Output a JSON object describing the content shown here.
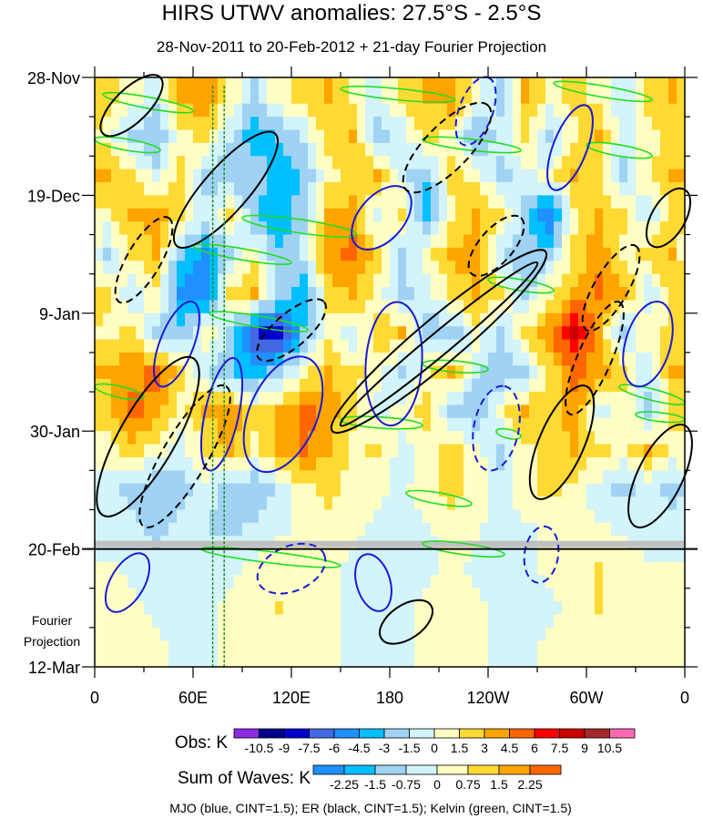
{
  "chart_data": {
    "type": "heatmap",
    "title": "HIRS UTWV anomalies: 27.5°S - 2.5°S",
    "subtitle": "28-Nov-2011 to 20-Feb-2012 + 21-day Fourier Projection",
    "xlim": [
      0,
      360
    ],
    "ylim_days": [
      0,
      105
    ],
    "x_ticks": [
      {
        "lon": 0,
        "label": "0"
      },
      {
        "lon": 60,
        "label": "60E"
      },
      {
        "lon": 120,
        "label": "120E"
      },
      {
        "lon": 180,
        "label": "180"
      },
      {
        "lon": 240,
        "label": "120W"
      },
      {
        "lon": 300,
        "label": "60W"
      },
      {
        "lon": 360,
        "label": "0"
      }
    ],
    "y_ticks": [
      {
        "day": 0,
        "label": "28-Nov"
      },
      {
        "day": 21,
        "label": "19-Dec"
      },
      {
        "day": 42,
        "label": "9-Jan"
      },
      {
        "day": 63,
        "label": "30-Jan"
      },
      {
        "day": 84,
        "label": "20-Feb"
      },
      {
        "day": 105,
        "label": "12-Mar"
      }
    ],
    "projection_label": [
      "Fourier",
      "Projection"
    ],
    "projection_start_day": 84,
    "grid_lon_step": 15,
    "grid_day_step": 7,
    "values": [
      [
        2,
        1,
        -1,
        3,
        4,
        1,
        -2,
        1,
        2,
        3,
        1,
        -1,
        2,
        3,
        4,
        1,
        -2,
        3,
        1,
        2,
        1,
        -1,
        2,
        3
      ],
      [
        1,
        -2,
        -3,
        1,
        2,
        -1,
        -4,
        -3,
        -1,
        2,
        3,
        -2,
        -1,
        2,
        1,
        -3,
        -1,
        2,
        -2,
        1,
        3,
        -1,
        1,
        2
      ],
      [
        3,
        2,
        -1,
        2,
        -2,
        -3,
        -2,
        -4,
        -3,
        1,
        2,
        3,
        -1,
        -3,
        2,
        1,
        -2,
        -1,
        1,
        3,
        2,
        -2,
        1,
        3
      ],
      [
        1,
        3,
        4,
        2,
        -1,
        2,
        -3,
        -4,
        -2,
        3,
        4,
        -1,
        2,
        -4,
        1,
        3,
        2,
        -2,
        -6,
        1,
        3,
        2,
        -1,
        2
      ],
      [
        -2,
        2,
        3,
        -3,
        -5,
        -2,
        1,
        -3,
        -1,
        4,
        5,
        2,
        -2,
        1,
        3,
        4,
        -1,
        -3,
        -2,
        2,
        4,
        1,
        2,
        3
      ],
      [
        2,
        -1,
        1,
        -5,
        -6,
        2,
        3,
        -2,
        -4,
        2,
        3,
        1,
        -2,
        -1,
        2,
        3,
        2,
        -2,
        1,
        3,
        5,
        3,
        -1,
        2
      ],
      [
        1,
        2,
        -2,
        -3,
        1,
        -2,
        -7,
        -9,
        -3,
        1,
        -1,
        2,
        3,
        -2,
        -3,
        1,
        -2,
        2,
        4,
        8,
        3,
        -2,
        1,
        2
      ],
      [
        3,
        4,
        5,
        2,
        -1,
        -3,
        -4,
        -2,
        1,
        3,
        2,
        1,
        -2,
        1,
        3,
        -1,
        -3,
        -2,
        2,
        5,
        4,
        2,
        -1,
        3
      ],
      [
        2,
        5,
        4,
        1,
        3,
        4,
        2,
        3,
        5,
        4,
        2,
        -1,
        1,
        2,
        -2,
        -3,
        1,
        3,
        2,
        4,
        -1,
        1,
        -2,
        2
      ],
      [
        1,
        2,
        1,
        -1,
        2,
        3,
        1,
        3,
        5,
        3,
        1,
        2,
        -1,
        1,
        2,
        1,
        -2,
        1,
        2,
        3,
        2,
        1,
        3,
        1
      ],
      [
        -1,
        -2,
        -3,
        -2,
        -1,
        -2,
        -3,
        -1,
        1,
        2,
        1,
        0.5,
        -0.5,
        1,
        2,
        1,
        -1,
        1,
        2,
        1,
        -1,
        -2,
        -1,
        -2
      ],
      [
        -1,
        -1,
        -2,
        -1,
        -1.5,
        -2,
        -1,
        -0.5,
        0.5,
        1,
        0.5,
        -0.5,
        -1,
        -0.5,
        1,
        0.5,
        -1,
        -0.5,
        0.5,
        1,
        0.5,
        -0.5,
        -1,
        -1
      ],
      [
        0.5,
        -0.5,
        -1,
        -1,
        -1,
        -0.5,
        0.5,
        1,
        0.5,
        0.5,
        -0.5,
        -1,
        -1,
        -0.5,
        0.5,
        -0.5,
        -1,
        -0.5,
        0.5,
        1,
        1.5,
        1,
        0.5,
        0.5
      ],
      [
        0.5,
        0.5,
        -0.5,
        -1,
        -0.5,
        0.5,
        1,
        1.5,
        1,
        0.5,
        -0.5,
        -1,
        -0.5,
        0.5,
        1,
        0.5,
        -0.5,
        -1,
        -0.5,
        1,
        1.5,
        1,
        0.5,
        0.5
      ],
      [
        0.5,
        0.5,
        0.5,
        -0.5,
        -0.5,
        0.5,
        1,
        1,
        0.5,
        0.5,
        -0.5,
        -0.5,
        -0.5,
        0.5,
        0.5,
        0.5,
        -0.5,
        -0.5,
        0.5,
        0.5,
        1,
        1,
        0.5,
        0.5
      ]
    ],
    "obs_colorbar": {
      "label": "Obs: K",
      "levels": [
        "-10.5",
        "-9",
        "-7.5",
        "-6",
        "-4.5",
        "-3",
        "-1.5",
        "0",
        "1.5",
        "3",
        "4.5",
        "6",
        "7.5",
        "9",
        "10.5"
      ],
      "colors": [
        "#8a2be2",
        "#00008b",
        "#0000cd",
        "#4169e1",
        "#1e90ff",
        "#00bfff",
        "#a0d2f4",
        "#d2f4fa",
        "#ffffc4",
        "#ffd934",
        "#ffa500",
        "#ff6600",
        "#ff0000",
        "#c80000",
        "#a52a2a",
        "#ff69b4"
      ]
    },
    "waves_colorbar": {
      "label": "Sum of Waves: K",
      "levels": [
        "-2.25",
        "-1.5",
        "-0.75",
        "0",
        "0.75",
        "1.5",
        "2.25"
      ],
      "colors": [
        "#1e90ff",
        "#00bfff",
        "#a0d2f4",
        "#d2f4fa",
        "#ffffc4",
        "#ffd934",
        "#ffa500",
        "#ff6600"
      ]
    },
    "footer": "MJO (blue, CINT=1.5); ER (black, CINT=1.5); Kelvin (green, CINT=1.5)",
    "series_colors": {
      "MJO": "#1a1ad6",
      "ER": "#000000",
      "Kelvin": "#22dd22"
    },
    "kelvin_reference_lons": [
      72,
      79
    ],
    "contours": {
      "ER": [
        [
          [
            145,
            63
          ],
          [
            275,
            31
          ],
          4,
          1
        ],
        [
          [
            150,
            62
          ],
          [
            270,
            33
          ],
          2,
          1
        ],
        [
          [
            5,
            78
          ],
          [
            60,
            50
          ],
          5,
          1
        ],
        [
          [
            30,
            80
          ],
          [
            80,
            55
          ],
          4,
          -1
        ],
        [
          [
            190,
            20
          ],
          [
            240,
            5
          ],
          4,
          -1
        ],
        [
          [
            50,
            30
          ],
          [
            110,
            10
          ],
          4,
          1
        ],
        [
          [
            330,
            80
          ],
          [
            360,
            62
          ],
          4,
          1
        ],
        [
          [
            175,
            100
          ],
          [
            205,
            94
          ],
          3,
          1
        ],
        [
          [
            270,
            75
          ],
          [
            300,
            55
          ],
          4,
          1
        ],
        [
          [
            290,
            60
          ],
          [
            320,
            40
          ],
          3,
          -1
        ],
        [
          [
            5,
            10
          ],
          [
            40,
            0
          ],
          3,
          1
        ],
        [
          [
            100,
            50
          ],
          [
            140,
            40
          ],
          3,
          -1
        ],
        [
          [
            230,
            35
          ],
          [
            260,
            25
          ],
          3,
          -1
        ],
        [
          [
            340,
            30
          ],
          [
            360,
            20
          ],
          3,
          1
        ],
        [
          [
            15,
            40
          ],
          [
            45,
            25
          ],
          3,
          -1
        ],
        [
          [
            300,
            45
          ],
          [
            330,
            30
          ],
          3,
          -1
        ]
      ],
      "MJO": [
        [
          [
            100,
            70
          ],
          [
            130,
            50
          ],
          6,
          1
        ],
        [
          [
            180,
            62
          ],
          [
            185,
            40
          ],
          5,
          1
        ],
        [
          [
            240,
            70
          ],
          [
            250,
            55
          ],
          4,
          -1
        ],
        [
          [
            280,
            20
          ],
          [
            300,
            5
          ],
          3,
          1
        ],
        [
          [
            40,
            55
          ],
          [
            60,
            40
          ],
          3,
          1
        ],
        [
          [
            160,
            30
          ],
          [
            190,
            20
          ],
          4,
          1
        ],
        [
          [
            330,
            55
          ],
          [
            345,
            40
          ],
          4,
          1
        ],
        [
          [
            10,
            95
          ],
          [
            30,
            85
          ],
          3,
          1
        ],
        [
          [
            100,
            90
          ],
          [
            140,
            85
          ],
          4,
          -1
        ],
        [
          [
            165,
            85
          ],
          [
            175,
            95
          ],
          3,
          1
        ],
        [
          [
            270,
            90
          ],
          [
            275,
            80
          ],
          3,
          -1
        ],
        [
          [
            70,
            70
          ],
          [
            85,
            50
          ],
          3,
          1
        ],
        [
          [
            225,
            12
          ],
          [
            240,
            0
          ],
          3,
          -1
        ]
      ],
      "Kelvin": [
        [
          [
            5,
            3
          ],
          [
            60,
            6
          ],
          1,
          1
        ],
        [
          [
            150,
            2
          ],
          [
            220,
            4
          ],
          1,
          1
        ],
        [
          [
            280,
            1
          ],
          [
            340,
            4
          ],
          1,
          1
        ],
        [
          [
            0,
            11
          ],
          [
            40,
            13
          ],
          1,
          1
        ],
        [
          [
            200,
            11
          ],
          [
            260,
            13
          ],
          1,
          1
        ],
        [
          [
            300,
            12
          ],
          [
            340,
            14
          ],
          1,
          1
        ],
        [
          [
            90,
            25
          ],
          [
            160,
            28
          ],
          1.2,
          1
        ],
        [
          [
            60,
            30
          ],
          [
            120,
            33
          ],
          1,
          1
        ],
        [
          [
            240,
            36
          ],
          [
            280,
            38
          ],
          1,
          1
        ],
        [
          [
            70,
            42
          ],
          [
            130,
            45
          ],
          1,
          1
        ],
        [
          [
            200,
            51
          ],
          [
            240,
            52
          ],
          1,
          1
        ],
        [
          [
            320,
            55
          ],
          [
            360,
            58
          ],
          1,
          1
        ],
        [
          [
            150,
            61
          ],
          [
            200,
            62
          ],
          1,
          1
        ],
        [
          [
            245,
            63
          ],
          [
            260,
            64
          ],
          0.8,
          1
        ],
        [
          [
            0,
            55
          ],
          [
            30,
            57
          ],
          1,
          1
        ],
        [
          [
            190,
            74
          ],
          [
            230,
            76
          ],
          1,
          1
        ],
        [
          [
            65,
            84
          ],
          [
            150,
            87
          ],
          1,
          1
        ],
        [
          [
            200,
            83
          ],
          [
            250,
            85
          ],
          1,
          1
        ],
        [
          [
            330,
            60
          ],
          [
            360,
            61
          ],
          0.8,
          1
        ]
      ]
    }
  }
}
